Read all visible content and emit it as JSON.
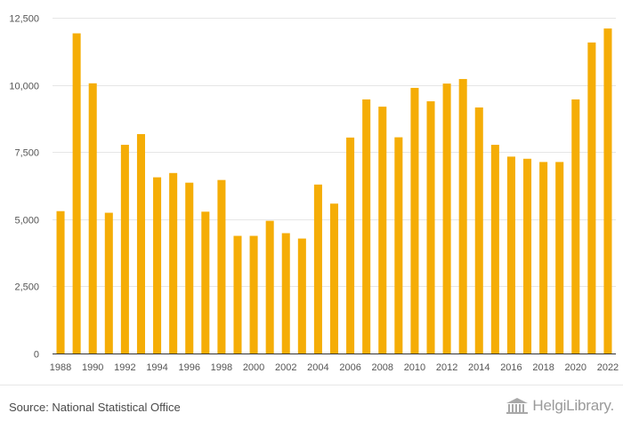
{
  "chart_data": {
    "type": "bar",
    "categories": [
      "1988",
      "1989",
      "1990",
      "1991",
      "1992",
      "1993",
      "1994",
      "1995",
      "1996",
      "1997",
      "1998",
      "1999",
      "2000",
      "2001",
      "2002",
      "2003",
      "2004",
      "2005",
      "2006",
      "2007",
      "2008",
      "2009",
      "2010",
      "2011",
      "2012",
      "2013",
      "2014",
      "2015",
      "2016",
      "2017",
      "2018",
      "2019",
      "2020",
      "2021",
      "2022"
    ],
    "values": [
      5300,
      11920,
      10060,
      5240,
      7770,
      8170,
      6560,
      6720,
      6360,
      5280,
      6460,
      4380,
      4380,
      4940,
      4480,
      4280,
      6290,
      5580,
      8040,
      9460,
      9190,
      8050,
      9890,
      9390,
      10050,
      10220,
      9160,
      7770,
      7330,
      7250,
      7130,
      7130,
      9460,
      11580,
      12100
    ],
    "x_tick_labels": [
      "1988",
      "1990",
      "1992",
      "1994",
      "1996",
      "1998",
      "2000",
      "2002",
      "2004",
      "2006",
      "2008",
      "2010",
      "2012",
      "2014",
      "2016",
      "2018",
      "2020",
      "2022"
    ],
    "y_ticks": [
      0,
      2500,
      5000,
      7500,
      10000,
      12500
    ],
    "y_tick_labels": [
      "0",
      "2,500",
      "5,000",
      "7,500",
      "10,000",
      "12,500"
    ],
    "ylim": [
      0,
      12500
    ],
    "grid": true,
    "bar_color": "#f5ad06",
    "grid_color": "#e6e6e6",
    "axis_color": "#333333"
  },
  "footer": {
    "source": "Source: National Statistical Office",
    "brand": "HelgiLibrary."
  }
}
